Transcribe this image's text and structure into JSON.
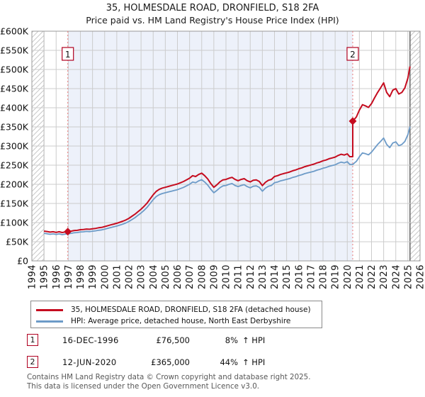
{
  "title": {
    "line1": "35, HOLMESDALE ROAD, DRONFIELD, S18 2FA",
    "line2": "Price paid vs. HM Land Registry's House Price Index (HPI)"
  },
  "colors": {
    "property_line": "#c50c1f",
    "hpi_line": "#6d9bc8",
    "marker_box_border": "#b00020",
    "dotted_line": "#e97b7b",
    "shade": "#edf1fa",
    "grid": "#cccccc",
    "plot_border": "#999999",
    "hatch": "#c9c9c9",
    "axis_text": "#111111"
  },
  "chart_data": {
    "type": "line",
    "title": "35, HOLMESDALE ROAD, DRONFIELD, S18 2FA — Price paid vs. HM Land Registry's House Price Index (HPI)",
    "xlabel": "Year",
    "ylabel": "Price (GBP)",
    "xlim": [
      1994,
      2026
    ],
    "ylim_k": [
      0,
      600
    ],
    "x_ticks": [
      1994,
      1995,
      1996,
      1997,
      1998,
      1999,
      2000,
      2001,
      2002,
      2003,
      2004,
      2005,
      2006,
      2007,
      2008,
      2009,
      2010,
      2011,
      2012,
      2013,
      2014,
      2015,
      2016,
      2017,
      2018,
      2019,
      2020,
      2021,
      2022,
      2023,
      2024,
      2025,
      2026
    ],
    "y_ticks_k": [
      0,
      50,
      100,
      150,
      200,
      250,
      300,
      350,
      400,
      450,
      500,
      550,
      600
    ],
    "y_tick_labels": [
      "£0",
      "£50K",
      "£100K",
      "£150K",
      "£200K",
      "£250K",
      "£300K",
      "£350K",
      "£400K",
      "£450K",
      "£500K",
      "£550K",
      "£600K"
    ],
    "grid": true,
    "legend_position": "bottom",
    "units": "values in GBP thousands",
    "data_start": 1995.0,
    "data_end": 2025.17,
    "shaded_region": [
      1996.96,
      2020.45
    ],
    "series": [
      {
        "name": "35, HOLMESDALE ROAD, DRONFIELD, S18 2FA (detached house)",
        "color": "#c50c1f",
        "width": 2,
        "points": [
          [
            1995.0,
            77.8
          ],
          [
            1995.25,
            76.7
          ],
          [
            1995.5,
            75.1
          ],
          [
            1995.75,
            76.1
          ],
          [
            1996.0,
            74.5
          ],
          [
            1996.25,
            76.1
          ],
          [
            1996.5,
            74.0
          ],
          [
            1996.75,
            75.6
          ],
          [
            1996.96,
            76.5
          ],
          [
            1997.25,
            77.8
          ],
          [
            1997.5,
            79.4
          ],
          [
            1997.75,
            79.9
          ],
          [
            1998.0,
            81.5
          ],
          [
            1998.25,
            82.1
          ],
          [
            1998.5,
            83.2
          ],
          [
            1998.75,
            82.6
          ],
          [
            1999.0,
            83.7
          ],
          [
            1999.25,
            84.8
          ],
          [
            1999.5,
            86.4
          ],
          [
            1999.75,
            87.5
          ],
          [
            2000.0,
            89.6
          ],
          [
            2000.25,
            91.8
          ],
          [
            2000.5,
            94.0
          ],
          [
            2000.75,
            96.1
          ],
          [
            2001.0,
            98.3
          ],
          [
            2001.25,
            101.0
          ],
          [
            2001.5,
            103.7
          ],
          [
            2001.75,
            106.9
          ],
          [
            2002.0,
            111.2
          ],
          [
            2002.25,
            116.6
          ],
          [
            2002.5,
            122.0
          ],
          [
            2002.75,
            128.5
          ],
          [
            2003.0,
            135.0
          ],
          [
            2003.25,
            142.6
          ],
          [
            2003.5,
            151.2
          ],
          [
            2003.75,
            162.0
          ],
          [
            2004.0,
            172.8
          ],
          [
            2004.25,
            181.4
          ],
          [
            2004.5,
            186.8
          ],
          [
            2004.75,
            190.1
          ],
          [
            2005.0,
            192.2
          ],
          [
            2005.25,
            194.4
          ],
          [
            2005.5,
            196.6
          ],
          [
            2005.75,
            198.7
          ],
          [
            2006.0,
            200.9
          ],
          [
            2006.25,
            204.1
          ],
          [
            2006.5,
            207.4
          ],
          [
            2006.75,
            211.7
          ],
          [
            2007.0,
            216.0
          ],
          [
            2007.25,
            222.5
          ],
          [
            2007.5,
            220.3
          ],
          [
            2007.75,
            225.7
          ],
          [
            2008.0,
            229.0
          ],
          [
            2008.25,
            222.5
          ],
          [
            2008.5,
            213.8
          ],
          [
            2008.75,
            202.0
          ],
          [
            2009.0,
            192.2
          ],
          [
            2009.25,
            198.7
          ],
          [
            2009.5,
            206.3
          ],
          [
            2009.75,
            211.7
          ],
          [
            2010.0,
            212.8
          ],
          [
            2010.25,
            216.0
          ],
          [
            2010.5,
            218.2
          ],
          [
            2010.75,
            212.8
          ],
          [
            2011.0,
            209.5
          ],
          [
            2011.25,
            212.8
          ],
          [
            2011.5,
            214.9
          ],
          [
            2011.75,
            209.5
          ],
          [
            2012.0,
            206.3
          ],
          [
            2012.25,
            210.6
          ],
          [
            2012.5,
            211.7
          ],
          [
            2012.75,
            207.4
          ],
          [
            2013.0,
            196.6
          ],
          [
            2013.25,
            205.2
          ],
          [
            2013.5,
            210.6
          ],
          [
            2013.75,
            212.8
          ],
          [
            2014.0,
            220.3
          ],
          [
            2014.25,
            222.5
          ],
          [
            2014.5,
            225.7
          ],
          [
            2014.75,
            227.9
          ],
          [
            2015.0,
            230.0
          ],
          [
            2015.25,
            232.2
          ],
          [
            2015.5,
            235.4
          ],
          [
            2015.75,
            237.6
          ],
          [
            2016.0,
            240.8
          ],
          [
            2016.25,
            243.0
          ],
          [
            2016.5,
            246.2
          ],
          [
            2016.75,
            248.4
          ],
          [
            2017.0,
            250.6
          ],
          [
            2017.25,
            252.7
          ],
          [
            2017.5,
            256.0
          ],
          [
            2017.75,
            258.1
          ],
          [
            2018.0,
            261.4
          ],
          [
            2018.25,
            263.5
          ],
          [
            2018.5,
            266.8
          ],
          [
            2018.75,
            268.9
          ],
          [
            2019.0,
            271.1
          ],
          [
            2019.25,
            275.4
          ],
          [
            2019.5,
            278.6
          ],
          [
            2019.75,
            276.5
          ],
          [
            2020.0,
            279.7
          ],
          [
            2020.2,
            272.2
          ],
          [
            2020.45,
            272.2
          ],
          [
            2020.45,
            365.0
          ],
          [
            2020.75,
            376.0
          ],
          [
            2021.0,
            394.0
          ],
          [
            2021.25,
            408.0
          ],
          [
            2021.5,
            405.0
          ],
          [
            2021.75,
            401.0
          ],
          [
            2022.0,
            411.0
          ],
          [
            2022.25,
            426.0
          ],
          [
            2022.5,
            440.0
          ],
          [
            2022.75,
            452.0
          ],
          [
            2023.0,
            465.0
          ],
          [
            2023.25,
            440.0
          ],
          [
            2023.5,
            429.0
          ],
          [
            2023.75,
            446.0
          ],
          [
            2024.0,
            450.0
          ],
          [
            2024.25,
            436.0
          ],
          [
            2024.5,
            440.0
          ],
          [
            2024.75,
            452.0
          ],
          [
            2025.0,
            478.0
          ],
          [
            2025.17,
            508.0
          ]
        ]
      },
      {
        "name": "HPI: Average price, detached house, North East Derbyshire",
        "color": "#6d9bc8",
        "width": 1.8,
        "points": [
          [
            1995.0,
            72.0
          ],
          [
            1995.25,
            71.0
          ],
          [
            1995.5,
            69.5
          ],
          [
            1995.75,
            70.5
          ],
          [
            1996.0,
            69.0
          ],
          [
            1996.25,
            70.5
          ],
          [
            1996.5,
            68.5
          ],
          [
            1996.75,
            70.0
          ],
          [
            1996.96,
            70.8
          ],
          [
            1997.25,
            72.0
          ],
          [
            1997.5,
            73.5
          ],
          [
            1997.75,
            74.0
          ],
          [
            1998.0,
            75.5
          ],
          [
            1998.25,
            76.0
          ],
          [
            1998.5,
            77.0
          ],
          [
            1998.75,
            76.5
          ],
          [
            1999.0,
            77.5
          ],
          [
            1999.25,
            78.5
          ],
          [
            1999.5,
            80.0
          ],
          [
            1999.75,
            81.0
          ],
          [
            2000.0,
            83.0
          ],
          [
            2000.25,
            85.0
          ],
          [
            2000.5,
            87.0
          ],
          [
            2000.75,
            89.0
          ],
          [
            2001.0,
            91.0
          ],
          [
            2001.25,
            93.5
          ],
          [
            2001.5,
            96.0
          ],
          [
            2001.75,
            99.0
          ],
          [
            2002.0,
            103.0
          ],
          [
            2002.25,
            108.0
          ],
          [
            2002.5,
            113.0
          ],
          [
            2002.75,
            119.0
          ],
          [
            2003.0,
            125.0
          ],
          [
            2003.25,
            132.0
          ],
          [
            2003.5,
            140.0
          ],
          [
            2003.75,
            150.0
          ],
          [
            2004.0,
            160.0
          ],
          [
            2004.25,
            168.0
          ],
          [
            2004.5,
            173.0
          ],
          [
            2004.75,
            176.0
          ],
          [
            2005.0,
            178.0
          ],
          [
            2005.25,
            180.0
          ],
          [
            2005.5,
            182.0
          ],
          [
            2005.75,
            184.0
          ],
          [
            2006.0,
            186.0
          ],
          [
            2006.25,
            189.0
          ],
          [
            2006.5,
            192.0
          ],
          [
            2006.75,
            196.0
          ],
          [
            2007.0,
            200.0
          ],
          [
            2007.25,
            206.0
          ],
          [
            2007.5,
            204.0
          ],
          [
            2007.75,
            209.0
          ],
          [
            2008.0,
            212.0
          ],
          [
            2008.25,
            206.0
          ],
          [
            2008.5,
            198.0
          ],
          [
            2008.75,
            187.0
          ],
          [
            2009.0,
            178.0
          ],
          [
            2009.25,
            184.0
          ],
          [
            2009.5,
            191.0
          ],
          [
            2009.75,
            196.0
          ],
          [
            2010.0,
            197.0
          ],
          [
            2010.25,
            200.0
          ],
          [
            2010.5,
            202.0
          ],
          [
            2010.75,
            197.0
          ],
          [
            2011.0,
            194.0
          ],
          [
            2011.25,
            197.0
          ],
          [
            2011.5,
            199.0
          ],
          [
            2011.75,
            194.0
          ],
          [
            2012.0,
            191.0
          ],
          [
            2012.25,
            195.0
          ],
          [
            2012.5,
            196.0
          ],
          [
            2012.75,
            192.0
          ],
          [
            2013.0,
            182.0
          ],
          [
            2013.25,
            190.0
          ],
          [
            2013.5,
            195.0
          ],
          [
            2013.75,
            197.0
          ],
          [
            2014.0,
            204.0
          ],
          [
            2014.25,
            206.0
          ],
          [
            2014.5,
            209.0
          ],
          [
            2014.75,
            211.0
          ],
          [
            2015.0,
            213.0
          ],
          [
            2015.25,
            215.0
          ],
          [
            2015.5,
            218.0
          ],
          [
            2015.75,
            220.0
          ],
          [
            2016.0,
            223.0
          ],
          [
            2016.25,
            225.0
          ],
          [
            2016.5,
            228.0
          ],
          [
            2016.75,
            230.0
          ],
          [
            2017.0,
            232.0
          ],
          [
            2017.25,
            234.0
          ],
          [
            2017.5,
            237.0
          ],
          [
            2017.75,
            239.0
          ],
          [
            2018.0,
            242.0
          ],
          [
            2018.25,
            244.0
          ],
          [
            2018.5,
            247.0
          ],
          [
            2018.75,
            249.0
          ],
          [
            2019.0,
            251.0
          ],
          [
            2019.25,
            255.0
          ],
          [
            2019.5,
            258.0
          ],
          [
            2019.75,
            256.0
          ],
          [
            2020.0,
            259.0
          ],
          [
            2020.2,
            252.0
          ],
          [
            2020.45,
            252.0
          ],
          [
            2020.75,
            260.0
          ],
          [
            2021.0,
            272.0
          ],
          [
            2021.25,
            282.0
          ],
          [
            2021.5,
            280.0
          ],
          [
            2021.75,
            277.0
          ],
          [
            2022.0,
            284.0
          ],
          [
            2022.25,
            294.0
          ],
          [
            2022.5,
            304.0
          ],
          [
            2022.75,
            312.0
          ],
          [
            2023.0,
            321.0
          ],
          [
            2023.25,
            304.0
          ],
          [
            2023.5,
            296.0
          ],
          [
            2023.75,
            308.0
          ],
          [
            2024.0,
            311.0
          ],
          [
            2024.25,
            301.0
          ],
          [
            2024.5,
            304.0
          ],
          [
            2024.75,
            312.0
          ],
          [
            2025.0,
            330.0
          ],
          [
            2025.17,
            351.0
          ]
        ]
      }
    ],
    "markers": [
      {
        "label": "1",
        "x": 1996.96,
        "value_k": 76.5
      },
      {
        "label": "2",
        "x": 2020.45,
        "value_k": 365.0
      }
    ]
  },
  "legend": {
    "items": [
      {
        "label": "35, HOLMESDALE ROAD, DRONFIELD, S18 2FA (detached house)",
        "color": "#c50c1f"
      },
      {
        "label": "HPI: Average price, detached house, North East Derbyshire",
        "color": "#6d9bc8"
      }
    ]
  },
  "transactions": [
    {
      "num": "1",
      "date": "16-DEC-1996",
      "price": "£76,500",
      "hpi_change": "8%",
      "hpi_suffix": "↑ HPI"
    },
    {
      "num": "2",
      "date": "12-JUN-2020",
      "price": "£365,000",
      "hpi_change": "44%",
      "hpi_suffix": "↑ HPI"
    }
  ],
  "footer": {
    "line1": "Contains HM Land Registry data © Crown copyright and database right 2025.",
    "line2": "This data is licensed under the Open Government Licence v3.0."
  }
}
